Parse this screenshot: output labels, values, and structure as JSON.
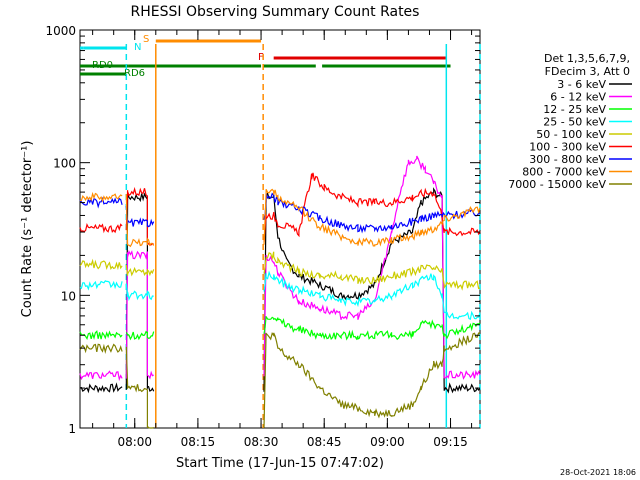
{
  "chart_data": {
    "type": "line",
    "title": "RHESSI Observing Summary Count Rates",
    "xlabel": "Start Time (17-Jun-15 07:47:02)",
    "ylabel": "Count Rate (s⁻¹ detector⁻¹)",
    "x_start": "07:47:02",
    "x_range_minutes_after_0747": [
      0,
      95
    ],
    "x_ticks": [
      "08:00",
      "08:15",
      "08:30",
      "08:45",
      "09:00",
      "09:15"
    ],
    "y_scale": "log",
    "y_range": [
      1,
      1000
    ],
    "y_ticks": [
      "1",
      "10",
      "100",
      "1000"
    ],
    "grid": false,
    "legend_title": [
      "Det 1,3,5,6,7,9,",
      "FDecim 3, Att 0"
    ],
    "legend_position": "right",
    "footer_date": "28-Oct-2021 18:06",
    "bars": [
      {
        "label": "N",
        "color": "#00e5ee",
        "segments": [
          [
            0,
            0.9
          ],
          [
            0.9,
            11
          ]
        ]
      },
      {
        "label": "S",
        "color": "#ff8c00",
        "segments": [
          [
            18,
            43
          ]
        ]
      },
      {
        "label": "F",
        "color": "#e00000",
        "segments": [
          [
            46,
            87
          ]
        ]
      },
      {
        "label": "RD0",
        "color": "#008000",
        "segments": [
          [
            0,
            11.5
          ],
          [
            11.5,
            43
          ],
          [
            43.5,
            56
          ],
          [
            57.5,
            88
          ]
        ]
      },
      {
        "label": "RD6",
        "color": "#008000",
        "segments": [
          [
            0,
            11
          ]
        ]
      }
    ],
    "vlines": [
      {
        "color": "#00e5ee",
        "style": "dashed",
        "x": 11
      },
      {
        "color": "#ff8c00",
        "style": "solid",
        "x": 18
      },
      {
        "color": "#ff8c00",
        "style": "dashed",
        "x": 43.5
      },
      {
        "color": "#00e5ee",
        "style": "solid",
        "x": 87
      },
      {
        "color": "#00e5ee",
        "style": "dashed",
        "x": 95
      }
    ],
    "series": [
      {
        "name": "3 - 6 keV",
        "color": "#000000",
        "points": [
          [
            0,
            2
          ],
          [
            10,
            2
          ],
          [
            11,
            2
          ],
          [
            11.3,
            55
          ],
          [
            16,
            55
          ],
          [
            16,
            2
          ],
          [
            17.5,
            2
          ],
          [
            43.7,
            2
          ],
          [
            44.2,
            55
          ],
          [
            46,
            55
          ],
          [
            47,
            28
          ],
          [
            49,
            18
          ],
          [
            52,
            14
          ],
          [
            57,
            12
          ],
          [
            62,
            10
          ],
          [
            66,
            10
          ],
          [
            70,
            12
          ],
          [
            74,
            25
          ],
          [
            79,
            30
          ],
          [
            81,
            50
          ],
          [
            84,
            60
          ],
          [
            86,
            55
          ],
          [
            86.5,
            2
          ],
          [
            95,
            2
          ]
        ],
        "segments": [
          [
            0,
            10
          ],
          [
            11,
            17.5
          ],
          [
            43.7,
            95
          ]
        ]
      },
      {
        "name": "6 - 12 keV",
        "color": "#ff00ff",
        "points": [
          [
            0,
            2.5
          ],
          [
            10,
            2.5
          ],
          [
            11,
            2.5
          ],
          [
            11.3,
            20
          ],
          [
            16,
            20
          ],
          [
            16,
            2.5
          ],
          [
            17.5,
            2.5
          ],
          [
            43.7,
            2.5
          ],
          [
            44.2,
            20
          ],
          [
            46,
            18
          ],
          [
            47,
            15
          ],
          [
            49,
            12
          ],
          [
            52,
            9
          ],
          [
            57,
            8
          ],
          [
            62,
            7
          ],
          [
            66,
            7
          ],
          [
            70,
            9
          ],
          [
            74,
            30
          ],
          [
            76,
            60
          ],
          [
            78,
            100
          ],
          [
            80,
            105
          ],
          [
            82,
            90
          ],
          [
            84,
            70
          ],
          [
            86,
            55
          ],
          [
            86.5,
            2.5
          ],
          [
            95,
            2.5
          ]
        ],
        "segments": [
          [
            0,
            10
          ],
          [
            11,
            17.5
          ],
          [
            43.7,
            95
          ]
        ]
      },
      {
        "name": "12 - 25 keV",
        "color": "#00ff00",
        "points": [
          [
            0,
            5
          ],
          [
            10,
            5
          ],
          [
            11,
            5
          ],
          [
            11.3,
            5
          ],
          [
            16,
            5
          ],
          [
            16,
            5
          ],
          [
            17.5,
            5
          ],
          [
            43.7,
            5
          ],
          [
            44.2,
            7
          ],
          [
            46,
            7
          ],
          [
            47,
            6.5
          ],
          [
            49,
            6
          ],
          [
            52,
            5.5
          ],
          [
            57,
            5
          ],
          [
            62,
            5
          ],
          [
            66,
            5
          ],
          [
            70,
            5
          ],
          [
            74,
            5
          ],
          [
            79,
            5
          ],
          [
            81,
            6
          ],
          [
            84,
            6
          ],
          [
            86,
            6
          ],
          [
            86.5,
            5
          ],
          [
            95,
            6
          ]
        ],
        "segments": [
          [
            0,
            10
          ],
          [
            11,
            17.5
          ],
          [
            43.7,
            95
          ]
        ]
      },
      {
        "name": "25 - 50 keV",
        "color": "#00ffff",
        "points": [
          [
            0,
            12
          ],
          [
            10,
            12
          ],
          [
            11,
            12
          ],
          [
            11.3,
            10
          ],
          [
            16,
            10
          ],
          [
            16,
            10
          ],
          [
            17.5,
            10
          ],
          [
            43.7,
            10
          ],
          [
            44.2,
            14
          ],
          [
            46,
            14
          ],
          [
            47,
            13
          ],
          [
            49,
            12
          ],
          [
            52,
            11
          ],
          [
            57,
            10
          ],
          [
            62,
            9
          ],
          [
            66,
            9
          ],
          [
            70,
            9
          ],
          [
            74,
            10
          ],
          [
            79,
            12
          ],
          [
            81,
            13
          ],
          [
            84,
            14
          ],
          [
            86,
            10
          ],
          [
            86.5,
            7
          ],
          [
            95,
            7
          ]
        ],
        "segments": [
          [
            0,
            10
          ],
          [
            11,
            17.5
          ],
          [
            43.7,
            95
          ]
        ]
      },
      {
        "name": "50 - 100 keV",
        "color": "#cccc00",
        "points": [
          [
            0,
            17
          ],
          [
            10,
            17
          ],
          [
            11,
            17
          ],
          [
            11.3,
            15
          ],
          [
            16,
            15
          ],
          [
            16,
            15
          ],
          [
            17.5,
            15
          ],
          [
            43.7,
            15
          ],
          [
            44.2,
            20
          ],
          [
            46,
            20
          ],
          [
            47,
            18
          ],
          [
            49,
            17
          ],
          [
            52,
            15
          ],
          [
            57,
            14
          ],
          [
            62,
            14
          ],
          [
            66,
            13
          ],
          [
            70,
            13
          ],
          [
            74,
            14
          ],
          [
            79,
            15
          ],
          [
            81,
            16
          ],
          [
            84,
            16
          ],
          [
            86,
            15
          ],
          [
            86.5,
            12
          ],
          [
            95,
            12
          ]
        ],
        "segments": [
          [
            0,
            10
          ],
          [
            11,
            17.5
          ],
          [
            43.7,
            95
          ]
        ]
      },
      {
        "name": "100 - 300 keV",
        "color": "#ff0000",
        "points": [
          [
            0,
            32
          ],
          [
            10,
            32
          ],
          [
            11,
            32
          ],
          [
            11.3,
            60
          ],
          [
            16,
            60
          ],
          [
            16,
            25
          ],
          [
            17.5,
            25
          ],
          [
            43.7,
            25
          ],
          [
            44.2,
            40
          ],
          [
            46,
            40
          ],
          [
            47,
            35
          ],
          [
            49,
            33
          ],
          [
            52,
            30
          ],
          [
            55,
            80
          ],
          [
            58,
            65
          ],
          [
            62,
            55
          ],
          [
            66,
            50
          ],
          [
            70,
            50
          ],
          [
            74,
            50
          ],
          [
            79,
            55
          ],
          [
            81,
            58
          ],
          [
            84,
            60
          ],
          [
            86,
            40
          ],
          [
            86.5,
            30
          ],
          [
            95,
            30
          ]
        ],
        "segments": [
          [
            0,
            10
          ],
          [
            11,
            17.5
          ],
          [
            43.7,
            95
          ]
        ]
      },
      {
        "name": "300 - 800 keV",
        "color": "#0000ff",
        "points": [
          [
            0,
            50
          ],
          [
            10,
            50
          ],
          [
            11,
            50
          ],
          [
            11.3,
            35
          ],
          [
            16,
            35
          ],
          [
            16,
            35
          ],
          [
            17.5,
            35
          ],
          [
            43.7,
            35
          ],
          [
            44.2,
            55
          ],
          [
            46,
            55
          ],
          [
            47,
            50
          ],
          [
            49,
            48
          ],
          [
            52,
            45
          ],
          [
            57,
            38
          ],
          [
            62,
            34
          ],
          [
            66,
            32
          ],
          [
            70,
            32
          ],
          [
            74,
            33
          ],
          [
            79,
            36
          ],
          [
            81,
            38
          ],
          [
            84,
            40
          ],
          [
            86,
            40
          ],
          [
            86.5,
            40
          ],
          [
            95,
            42
          ]
        ],
        "segments": [
          [
            0,
            10
          ],
          [
            11,
            17.5
          ],
          [
            43.7,
            95
          ]
        ]
      },
      {
        "name": "800 - 7000 keV",
        "color": "#ff8c00",
        "points": [
          [
            0,
            55
          ],
          [
            10,
            55
          ],
          [
            11,
            55
          ],
          [
            11.3,
            25
          ],
          [
            16,
            25
          ],
          [
            16,
            25
          ],
          [
            17.5,
            25
          ],
          [
            43.7,
            25
          ],
          [
            44.2,
            60
          ],
          [
            46,
            60
          ],
          [
            47,
            55
          ],
          [
            49,
            50
          ],
          [
            52,
            45
          ],
          [
            57,
            33
          ],
          [
            62,
            28
          ],
          [
            66,
            25
          ],
          [
            70,
            25
          ],
          [
            74,
            26
          ],
          [
            79,
            28
          ],
          [
            81,
            30
          ],
          [
            84,
            32
          ],
          [
            86,
            35
          ],
          [
            86.5,
            38
          ],
          [
            95,
            45
          ]
        ],
        "segments": [
          [
            0,
            10
          ],
          [
            11,
            17.5
          ],
          [
            43.7,
            95
          ]
        ]
      },
      {
        "name": "7000 - 15000 keV",
        "color": "#808000",
        "points": [
          [
            0,
            4
          ],
          [
            10,
            4
          ],
          [
            11,
            4
          ],
          [
            11.3,
            2
          ],
          [
            16,
            2
          ],
          [
            16,
            1
          ],
          [
            17.5,
            1
          ],
          [
            43.7,
            1
          ],
          [
            44.2,
            5
          ],
          [
            46,
            5
          ],
          [
            47,
            4
          ],
          [
            49,
            3.5
          ],
          [
            52,
            3
          ],
          [
            57,
            2
          ],
          [
            62,
            1.5
          ],
          [
            66,
            1.4
          ],
          [
            70,
            1.3
          ],
          [
            74,
            1.3
          ],
          [
            79,
            1.5
          ],
          [
            81,
            2
          ],
          [
            84,
            3
          ],
          [
            86,
            3
          ],
          [
            86.5,
            4
          ],
          [
            95,
            5
          ]
        ],
        "segments": [
          [
            0,
            10
          ],
          [
            11,
            17.5
          ],
          [
            43.7,
            95
          ]
        ]
      }
    ]
  }
}
